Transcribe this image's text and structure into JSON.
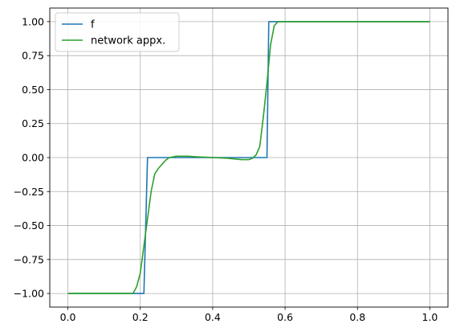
{
  "chart_data": {
    "type": "line",
    "xlim": [
      -0.05,
      1.05
    ],
    "ylim": [
      -1.1,
      1.1
    ],
    "xticks": [
      0.0,
      0.2,
      0.4,
      0.6,
      0.8,
      1.0
    ],
    "xtick_labels": [
      "0.0",
      "0.2",
      "0.4",
      "0.6",
      "0.8",
      "1.0"
    ],
    "yticks": [
      -1.0,
      -0.75,
      -0.5,
      -0.25,
      0.0,
      0.25,
      0.5,
      0.75,
      1.0
    ],
    "ytick_labels": [
      "−1.00",
      "−0.75",
      "−0.50",
      "−0.25",
      "0.00",
      "0.25",
      "0.50",
      "0.75",
      "1.00"
    ],
    "grid": true,
    "legend_position": "top-left",
    "series": [
      {
        "name": "f",
        "color": "#1f77b4",
        "x": [
          0.0,
          0.21,
          0.22,
          0.55,
          0.555,
          1.0
        ],
        "y": [
          -1.0,
          -1.0,
          0.0,
          0.0,
          1.0,
          1.0
        ]
      },
      {
        "name": "network appx.",
        "color": "#2ca02c",
        "x": [
          0.0,
          0.18,
          0.19,
          0.2,
          0.21,
          0.22,
          0.23,
          0.24,
          0.25,
          0.26,
          0.27,
          0.28,
          0.3,
          0.33,
          0.36,
          0.4,
          0.44,
          0.48,
          0.5,
          0.51,
          0.52,
          0.53,
          0.54,
          0.55,
          0.56,
          0.57,
          0.58,
          0.6,
          0.7,
          0.8,
          0.9,
          1.0
        ],
        "y": [
          -1.0,
          -1.0,
          -0.95,
          -0.85,
          -0.65,
          -0.45,
          -0.25,
          -0.12,
          -0.08,
          -0.05,
          -0.02,
          0.0,
          0.01,
          0.01,
          0.005,
          0.0,
          -0.005,
          -0.015,
          -0.015,
          -0.005,
          0.02,
          0.08,
          0.3,
          0.55,
          0.83,
          0.97,
          1.0,
          1.0,
          1.0,
          1.0,
          1.0,
          1.0
        ]
      }
    ]
  }
}
